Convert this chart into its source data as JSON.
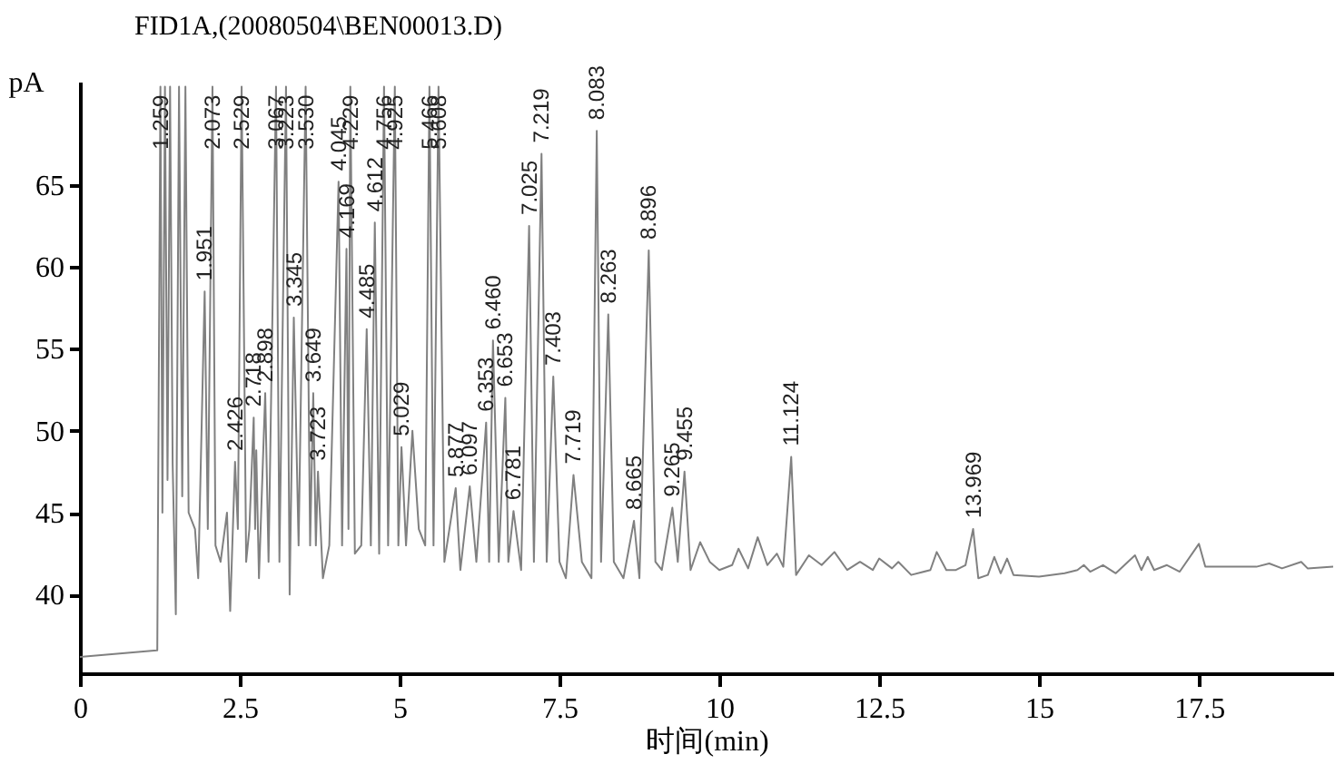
{
  "chart_data": {
    "type": "line",
    "title": "FID1A,(20080504\\BEN00013.D)",
    "xlabel": "时间(min)",
    "ylabel": "pA",
    "xlim": [
      0,
      19.6
    ],
    "ylim": [
      35.2,
      71.3
    ],
    "xticks": [
      0,
      2.5,
      5,
      7.5,
      10,
      12.5,
      15,
      17.5
    ],
    "yticks": [
      40,
      45,
      50,
      55,
      60,
      65
    ],
    "series": [
      {
        "color": "#808080",
        "x": [
          0,
          1.2,
          1.21,
          1.259,
          1.29,
          1.33,
          1.37,
          1.41,
          1.45,
          1.5,
          1.55,
          1.6,
          1.65,
          1.7,
          1.8,
          1.85,
          1.951,
          2.0,
          2.073,
          2.12,
          2.2,
          2.3,
          2.35,
          2.426,
          2.47,
          2.529,
          2.6,
          2.65,
          2.718,
          2.74,
          2.758,
          2.8,
          2.898,
          2.95,
          3.067,
          3.12,
          3.223,
          3.28,
          3.345,
          3.42,
          3.53,
          3.6,
          3.649,
          3.69,
          3.723,
          3.8,
          3.9,
          4.045,
          4.1,
          4.169,
          4.2,
          4.229,
          4.3,
          4.4,
          4.485,
          4.55,
          4.612,
          4.68,
          4.756,
          4.82,
          4.925,
          4.98,
          5.029,
          5.1,
          5.2,
          5.3,
          5.4,
          5.466,
          5.53,
          5.608,
          5.7,
          5.877,
          5.95,
          6.097,
          6.2,
          6.353,
          6.4,
          6.46,
          6.55,
          6.653,
          6.7,
          6.781,
          6.9,
          7.025,
          7.1,
          7.219,
          7.3,
          7.403,
          7.5,
          7.6,
          7.719,
          7.85,
          8.0,
          8.083,
          8.15,
          8.263,
          8.35,
          8.5,
          8.665,
          8.75,
          8.896,
          9.0,
          9.1,
          9.265,
          9.35,
          9.455,
          9.55,
          9.7,
          9.85,
          10.0,
          10.2,
          10.3,
          10.45,
          10.6,
          10.75,
          10.9,
          11.0,
          11.124,
          11.2,
          11.4,
          11.6,
          11.8,
          12.0,
          12.2,
          12.4,
          12.5,
          12.7,
          12.8,
          13.0,
          13.3,
          13.4,
          13.55,
          13.7,
          13.85,
          13.969,
          14.05,
          14.2,
          14.3,
          14.4,
          14.5,
          14.6,
          15.0,
          15.4,
          15.6,
          15.7,
          15.8,
          16.0,
          16.2,
          16.5,
          16.6,
          16.7,
          16.8,
          17.0,
          17.2,
          17.5,
          17.6,
          18.0,
          18.4,
          18.6,
          18.8,
          19.1,
          19.2,
          19.6
        ],
        "values": [
          36.2,
          36.6,
          36.6,
          71,
          45,
          71,
          47,
          71,
          48,
          38.8,
          71,
          46,
          71,
          45,
          44,
          41,
          58.5,
          44,
          71,
          43,
          42,
          45,
          39,
          48.1,
          44,
          71,
          42,
          44,
          50.8,
          44,
          48.8,
          41,
          52.3,
          42,
          71,
          42,
          71,
          40,
          56.9,
          43,
          71,
          43,
          52.3,
          43,
          47.5,
          41,
          43,
          65.2,
          43,
          61.1,
          44,
          71,
          42.5,
          43,
          56.2,
          43,
          62.7,
          42.5,
          71,
          43,
          71,
          43,
          49,
          43,
          50,
          44,
          43,
          71,
          43,
          71,
          42,
          46.5,
          41.5,
          46.6,
          42,
          50.5,
          42,
          55.5,
          42,
          52,
          42,
          45.1,
          41.5,
          62.5,
          42,
          66.9,
          42,
          53.3,
          42,
          41,
          47.3,
          42,
          41,
          68.3,
          42,
          57.1,
          42,
          41,
          44.5,
          41,
          61,
          42,
          41.5,
          45.3,
          42,
          47.5,
          41.5,
          43.2,
          42,
          41.5,
          41.8,
          42.8,
          41.6,
          43.5,
          41.8,
          42.5,
          41.7,
          48.4,
          41.2,
          42.4,
          41.8,
          42.6,
          41.5,
          42,
          41.5,
          42.2,
          41.6,
          42,
          41.2,
          41.5,
          42.6,
          41.5,
          41.5,
          41.8,
          44,
          41,
          41.2,
          42.3,
          41.3,
          42.2,
          41.2,
          41.1,
          41.3,
          41.5,
          41.8,
          41.4,
          41.8,
          41.3,
          42.4,
          41.5,
          42.3,
          41.5,
          41.8,
          41.4,
          43.1,
          41.7,
          41.7,
          41.7,
          41.9,
          41.6,
          42,
          41.6,
          41.7
        ]
      }
    ],
    "annotations": [
      {
        "text": "1.259",
        "x": 1.259,
        "y": 66.5
      },
      {
        "text": "1.951",
        "x": 1.951,
        "y": 58.5
      },
      {
        "text": "2.073",
        "x": 2.073,
        "y": 66.5
      },
      {
        "text": "2.426",
        "x": 2.426,
        "y": 48.1
      },
      {
        "text": "2.529",
        "x": 2.529,
        "y": 66.5
      },
      {
        "text": "2.718",
        "x": 2.718,
        "y": 50.8
      },
      {
        "text": "2.898",
        "x": 2.898,
        "y": 52.3
      },
      {
        "text": "3.067",
        "x": 3.067,
        "y": 66.5
      },
      {
        "text": "3.223",
        "x": 3.223,
        "y": 66.5
      },
      {
        "text": "3.345",
        "x": 3.345,
        "y": 56.9
      },
      {
        "text": "3.530",
        "x": 3.53,
        "y": 66.5
      },
      {
        "text": "3.649",
        "x": 3.649,
        "y": 52.3
      },
      {
        "text": "3.723",
        "x": 3.723,
        "y": 47.5
      },
      {
        "text": "4.045",
        "x": 4.045,
        "y": 65.2
      },
      {
        "text": "4.169",
        "x": 4.169,
        "y": 61.1
      },
      {
        "text": "4.229",
        "x": 4.229,
        "y": 66.5
      },
      {
        "text": "4.485",
        "x": 4.485,
        "y": 56.2
      },
      {
        "text": "4.612",
        "x": 4.612,
        "y": 62.7
      },
      {
        "text": "4.756",
        "x": 4.756,
        "y": 66.5
      },
      {
        "text": "4.925",
        "x": 4.925,
        "y": 66.5
      },
      {
        "text": "5.029",
        "x": 5.029,
        "y": 49.0
      },
      {
        "text": "5.466",
        "x": 5.466,
        "y": 66.5
      },
      {
        "text": "5.608",
        "x": 5.608,
        "y": 66.5
      },
      {
        "text": "5.877",
        "x": 5.877,
        "y": 46.5
      },
      {
        "text": "6.097",
        "x": 6.097,
        "y": 46.6
      },
      {
        "text": "6.353",
        "x": 6.353,
        "y": 50.5
      },
      {
        "text": "6.460",
        "x": 6.46,
        "y": 55.5
      },
      {
        "text": "6.653",
        "x": 6.653,
        "y": 52.0
      },
      {
        "text": "6.781",
        "x": 6.781,
        "y": 45.1
      },
      {
        "text": "7.025",
        "x": 7.025,
        "y": 62.5
      },
      {
        "text": "7.219",
        "x": 7.219,
        "y": 66.9
      },
      {
        "text": "7.403",
        "x": 7.403,
        "y": 53.3
      },
      {
        "text": "7.719",
        "x": 7.719,
        "y": 47.3
      },
      {
        "text": "8.083",
        "x": 8.083,
        "y": 68.3
      },
      {
        "text": "8.263",
        "x": 8.263,
        "y": 57.1
      },
      {
        "text": "8.665",
        "x": 8.665,
        "y": 44.5
      },
      {
        "text": "8.896",
        "x": 8.896,
        "y": 61.0
      },
      {
        "text": "9.265",
        "x": 9.265,
        "y": 45.3
      },
      {
        "text": "9.455",
        "x": 9.455,
        "y": 47.5
      },
      {
        "text": "11.124",
        "x": 11.124,
        "y": 48.4
      },
      {
        "text": "13.969",
        "x": 13.969,
        "y": 44.0
      }
    ]
  }
}
